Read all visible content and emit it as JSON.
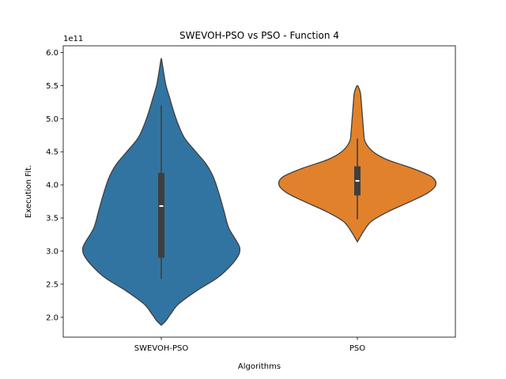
{
  "chart_data": {
    "type": "violin",
    "title": "SWEVOH-PSO vs PSO - Function 4",
    "xlabel": "Algorithms",
    "ylabel": "Execution Fit.",
    "offset_label": "1e11",
    "categories": [
      "SWEVOH-PSO",
      "PSO"
    ],
    "ylim": [
      1.7,
      6.1
    ],
    "yticks": [
      2.0,
      2.5,
      3.0,
      3.5,
      4.0,
      4.5,
      5.0,
      5.5,
      6.0
    ],
    "ytick_labels": [
      "2.0",
      "2.5",
      "3.0",
      "3.5",
      "4.0",
      "4.5",
      "5.0",
      "5.5",
      "6.0"
    ],
    "grid": false,
    "series": [
      {
        "category": "SWEVOH-PSO",
        "color": "#3274a1",
        "box": {
          "q1": 2.9,
          "median": 3.68,
          "q3": 4.18,
          "whisker_low": 2.58,
          "whisker_high": 5.2
        },
        "density": [
          [
            1.88,
            0.0
          ],
          [
            1.95,
            0.06
          ],
          [
            2.05,
            0.12
          ],
          [
            2.2,
            0.22
          ],
          [
            2.4,
            0.45
          ],
          [
            2.6,
            0.72
          ],
          [
            2.8,
            0.9
          ],
          [
            2.95,
            0.99
          ],
          [
            3.05,
            1.0
          ],
          [
            3.15,
            0.96
          ],
          [
            3.35,
            0.86
          ],
          [
            3.6,
            0.8
          ],
          [
            3.85,
            0.74
          ],
          [
            4.1,
            0.67
          ],
          [
            4.3,
            0.58
          ],
          [
            4.5,
            0.44
          ],
          [
            4.7,
            0.3
          ],
          [
            4.9,
            0.22
          ],
          [
            5.1,
            0.16
          ],
          [
            5.3,
            0.11
          ],
          [
            5.5,
            0.06
          ],
          [
            5.7,
            0.03
          ],
          [
            5.85,
            0.01
          ],
          [
            5.91,
            0.0
          ]
        ]
      },
      {
        "category": "PSO",
        "color": "#e1812c",
        "box": {
          "q1": 3.84,
          "median": 4.06,
          "q3": 4.28,
          "whisker_low": 3.48,
          "whisker_high": 4.7
        },
        "density": [
          [
            3.14,
            0.0
          ],
          [
            3.2,
            0.03
          ],
          [
            3.3,
            0.08
          ],
          [
            3.45,
            0.18
          ],
          [
            3.6,
            0.4
          ],
          [
            3.75,
            0.68
          ],
          [
            3.88,
            0.9
          ],
          [
            4.0,
            1.0
          ],
          [
            4.12,
            0.95
          ],
          [
            4.25,
            0.7
          ],
          [
            4.38,
            0.38
          ],
          [
            4.5,
            0.2
          ],
          [
            4.65,
            0.1
          ],
          [
            4.8,
            0.08
          ],
          [
            4.95,
            0.07
          ],
          [
            5.1,
            0.06
          ],
          [
            5.25,
            0.05
          ],
          [
            5.38,
            0.04
          ],
          [
            5.46,
            0.02
          ],
          [
            5.5,
            0.0
          ]
        ]
      }
    ]
  }
}
